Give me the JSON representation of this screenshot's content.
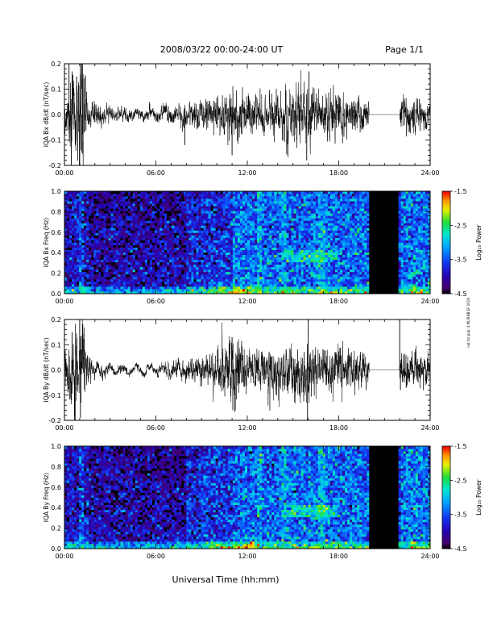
{
  "header": {
    "title": "2008/03/22  00:00-24:00 UT",
    "page_label": "Page 1/1"
  },
  "xlabel": "Universal Time (hh:mm)",
  "side_note": "not for pub: 4 ML/RNB EF 2019",
  "chart_data": [
    {
      "type": "line",
      "name": "bx-dbdt",
      "ylabel": "IQA Bx dB/dt (nT/sec)",
      "xlim": [
        0,
        24
      ],
      "ylim": [
        -0.2,
        0.2
      ],
      "xticks": [
        0,
        6,
        12,
        18,
        24
      ],
      "xtick_labels": [
        "00:00",
        "06:00",
        "12:00",
        "18:00",
        "24:00"
      ],
      "yticks": [
        -0.2,
        -0.1,
        0.0,
        0.1,
        0.2
      ],
      "ytick_labels": [
        "-0.2",
        "-0.1",
        "0.0",
        "0.1",
        "0.2"
      ],
      "data_gap": [
        20.0,
        22.0
      ],
      "activity_profile": {
        "x": [
          0,
          0.7,
          1.2,
          1.5,
          3,
          6,
          8,
          10,
          11,
          12,
          13,
          14,
          15,
          16,
          17,
          18,
          19,
          20,
          22,
          22.2,
          24
        ],
        "amplitude": [
          0.05,
          0.09,
          0.12,
          0.03,
          0.012,
          0.012,
          0.02,
          0.035,
          0.05,
          0.04,
          0.045,
          0.045,
          0.06,
          0.05,
          0.04,
          0.04,
          0.035,
          0.03,
          0.03,
          0.04,
          0.025
        ]
      },
      "spikes": [
        [
          0.3,
          0.2
        ],
        [
          0.45,
          -0.2
        ],
        [
          0.8,
          0.15
        ],
        [
          1.0,
          -0.2
        ],
        [
          1.05,
          0.2
        ],
        [
          1.15,
          -0.15
        ],
        [
          7.9,
          -0.12
        ],
        [
          9.35,
          0.05
        ],
        [
          11.0,
          -0.16
        ],
        [
          16.05,
          0.17
        ],
        [
          15.9,
          -0.18
        ]
      ]
    },
    {
      "type": "heatmap",
      "name": "bx-spectrogram",
      "ylabel": "IQA Bx Freq (Hz)",
      "xlim": [
        0,
        24
      ],
      "ylim": [
        0.0,
        1.0
      ],
      "xticks": [
        0,
        6,
        12,
        18,
        24
      ],
      "xtick_labels": [
        "00:00",
        "06:00",
        "12:00",
        "18:00",
        "24:00"
      ],
      "yticks": [
        0.0,
        0.2,
        0.4,
        0.6,
        0.8,
        1.0
      ],
      "ytick_labels": [
        "0.0",
        "0.2",
        "0.4",
        "0.6",
        "0.8",
        "1.0"
      ],
      "data_gap": [
        20.0,
        22.0
      ],
      "colorbar": {
        "label": "Log₁₀ Power",
        "range": [
          -4.5,
          -1.5
        ],
        "ticks": [
          -1.5,
          -2.5,
          -3.5,
          -4.5
        ],
        "tick_labels": [
          "-1.5",
          "-2.5",
          "-3.5",
          "-4.5"
        ]
      },
      "features": {
        "band_center_hz": 0.38,
        "band_span_hours": [
          14.5,
          18.0
        ],
        "low_freq_enhancement_hours": [
          9.5,
          12.5
        ]
      }
    },
    {
      "type": "line",
      "name": "by-dbdt",
      "ylabel": "IQA By dB/dt (nT/sec)",
      "xlim": [
        0,
        24
      ],
      "ylim": [
        -0.2,
        0.2
      ],
      "xticks": [
        0,
        6,
        12,
        18,
        24
      ],
      "xtick_labels": [
        "00:00",
        "06:00",
        "12:00",
        "18:00",
        "24:00"
      ],
      "yticks": [
        -0.2,
        -0.1,
        0.0,
        0.1,
        0.2
      ],
      "ytick_labels": [
        "-0.2",
        "-0.1",
        "0.0",
        "0.1",
        "0.2"
      ],
      "data_gap": [
        20.0,
        22.0
      ],
      "activity_profile": {
        "x": [
          0,
          0.7,
          1.2,
          1.5,
          3,
          6,
          8,
          10,
          11,
          12,
          13,
          14,
          15,
          16,
          17,
          18,
          19,
          20,
          22,
          22.2,
          24
        ],
        "amplitude": [
          0.05,
          0.09,
          0.11,
          0.025,
          0.008,
          0.008,
          0.02,
          0.035,
          0.075,
          0.04,
          0.045,
          0.05,
          0.06,
          0.05,
          0.04,
          0.04,
          0.035,
          0.03,
          0.03,
          0.04,
          0.025
        ]
      },
      "spikes": [
        [
          0.5,
          0.15
        ],
        [
          0.7,
          -0.2
        ],
        [
          1.0,
          0.2
        ],
        [
          1.05,
          -0.19
        ],
        [
          11.0,
          0.13
        ],
        [
          11.05,
          -0.16
        ],
        [
          16.0,
          0.2
        ],
        [
          15.95,
          -0.2
        ],
        [
          22.0,
          0.2
        ],
        [
          22.05,
          -0.08
        ]
      ]
    },
    {
      "type": "heatmap",
      "name": "by-spectrogram",
      "ylabel": "IQA By Freq (Hz)",
      "xlim": [
        0,
        24
      ],
      "ylim": [
        0.0,
        1.0
      ],
      "xticks": [
        0,
        6,
        12,
        18,
        24
      ],
      "xtick_labels": [
        "00:00",
        "06:00",
        "12:00",
        "18:00",
        "24:00"
      ],
      "yticks": [
        0.0,
        0.2,
        0.4,
        0.6,
        0.8,
        1.0
      ],
      "ytick_labels": [
        "0.0",
        "0.2",
        "0.4",
        "0.6",
        "0.8",
        "1.0"
      ],
      "data_gap": [
        20.0,
        22.0
      ],
      "colorbar": {
        "label": "Log₁₀ Power",
        "range": [
          -4.5,
          -1.5
        ],
        "ticks": [
          -1.5,
          -2.5,
          -3.5,
          -4.5
        ],
        "tick_labels": [
          "-1.5",
          "-2.5",
          "-3.5",
          "-4.5"
        ]
      },
      "features": {
        "band_center_hz": 0.38,
        "band_span_hours": [
          14.5,
          18.0
        ],
        "low_freq_enhancement_hours": [
          9.5,
          12.5
        ]
      }
    }
  ]
}
